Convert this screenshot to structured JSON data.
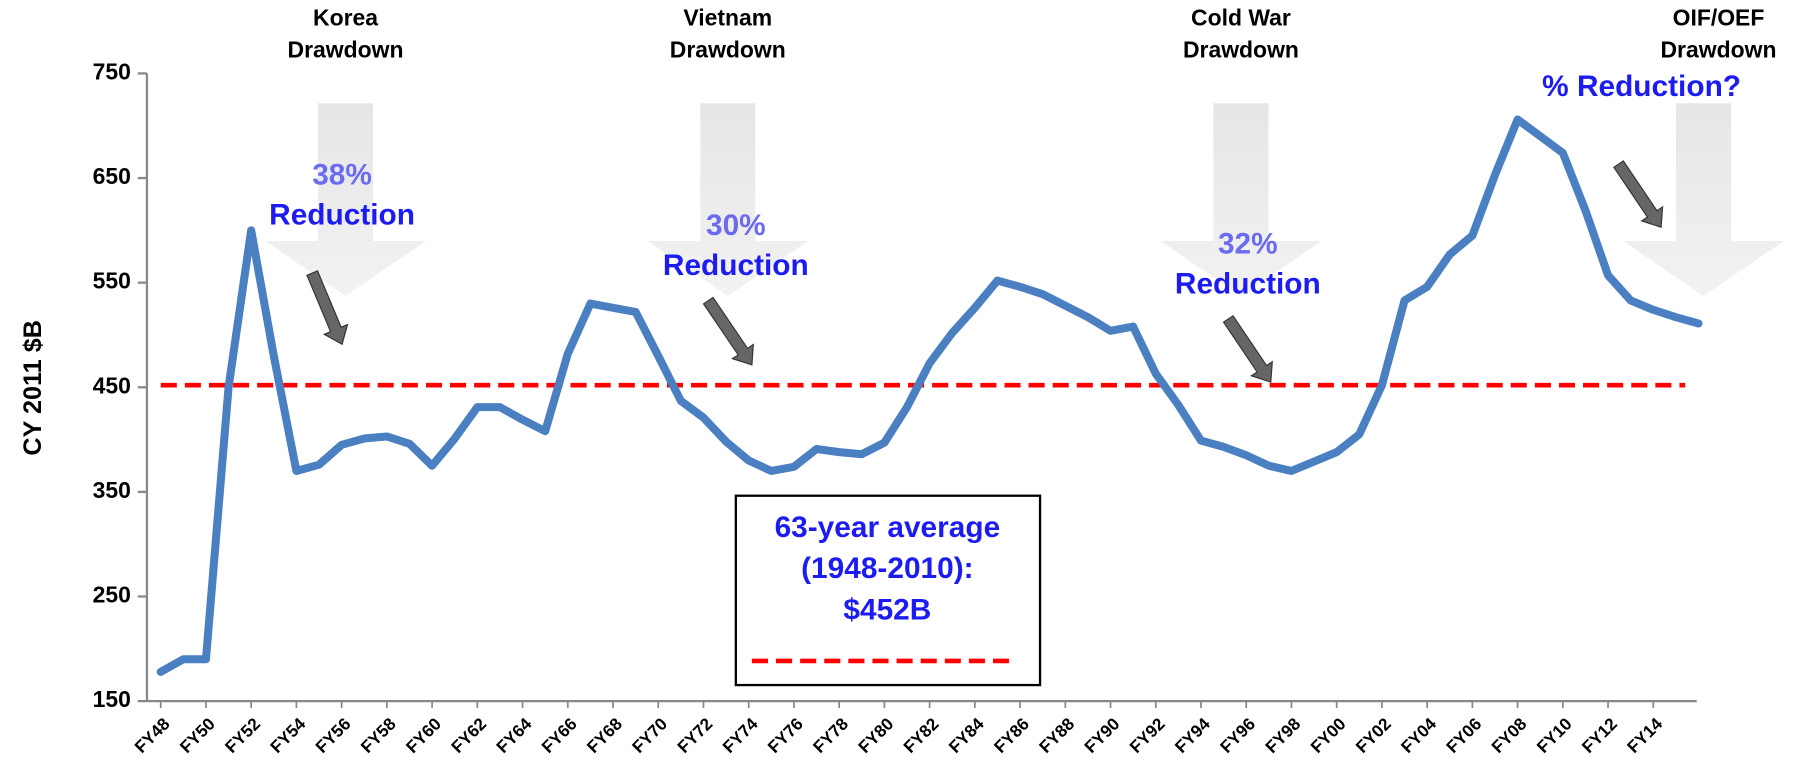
{
  "chart_data": {
    "type": "line",
    "y_label": "CY 2011 $B",
    "categories": [
      "FY48",
      null,
      "FY50",
      null,
      "FY52",
      null,
      "FY54",
      null,
      "FY56",
      null,
      "FY58",
      null,
      "FY60",
      null,
      "FY62",
      null,
      "FY64",
      null,
      "FY66",
      null,
      "FY68",
      null,
      "FY70",
      null,
      "FY72",
      null,
      "FY74",
      null,
      "FY76",
      null,
      "FY78",
      null,
      "FY80",
      null,
      "FY82",
      null,
      "FY84",
      null,
      "FY86",
      null,
      "FY88",
      null,
      "FY90",
      null,
      "FY92",
      null,
      "FY94",
      null,
      "FY96",
      null,
      "FY98",
      null,
      "FY00",
      null,
      "FY02",
      null,
      "FY04",
      null,
      "FY06",
      null,
      "FY08",
      null,
      "FY10",
      null,
      "FY12",
      null,
      "FY14",
      null,
      null
    ],
    "series": [
      {
        "color": "#4a7fc1",
        "values": [
          178,
          190,
          190,
          450,
          600,
          480,
          370,
          376,
          395,
          401,
          403,
          396,
          375,
          401,
          431,
          431,
          419,
          408,
          482,
          530,
          526,
          522,
          480,
          437,
          421,
          398,
          380,
          370,
          374,
          391,
          388,
          386,
          397,
          431,
          473,
          502,
          526,
          552,
          546,
          539,
          528,
          517,
          504,
          508,
          463,
          433,
          399,
          393,
          385,
          375,
          370,
          379,
          388,
          405,
          452,
          533,
          546,
          577,
          595,
          653,
          706,
          690,
          674,
          619,
          557,
          533,
          524,
          517,
          511
        ]
      }
    ],
    "average": {
      "value": 452,
      "color": "#ff0000",
      "box": [
        "63-year average",
        "(1948-2010):",
        "$452B"
      ]
    },
    "ylim": [
      150,
      750
    ],
    "yticks": [
      150,
      250,
      350,
      450,
      550,
      650,
      750
    ],
    "drawdowns": [
      [
        "Korea",
        "Drawdown"
      ],
      [
        "Vietnam",
        "Drawdown"
      ],
      [
        "Cold War",
        "Drawdown"
      ],
      [
        "OIF/OEF",
        "Drawdown"
      ]
    ],
    "reductions": [
      {
        "percent": "38%",
        "text": "Reduction"
      },
      {
        "percent": "30%",
        "text": "Reduction"
      },
      {
        "percent": "32%",
        "text": "Reduction"
      }
    ],
    "reduction_question": "% Reduction?"
  }
}
